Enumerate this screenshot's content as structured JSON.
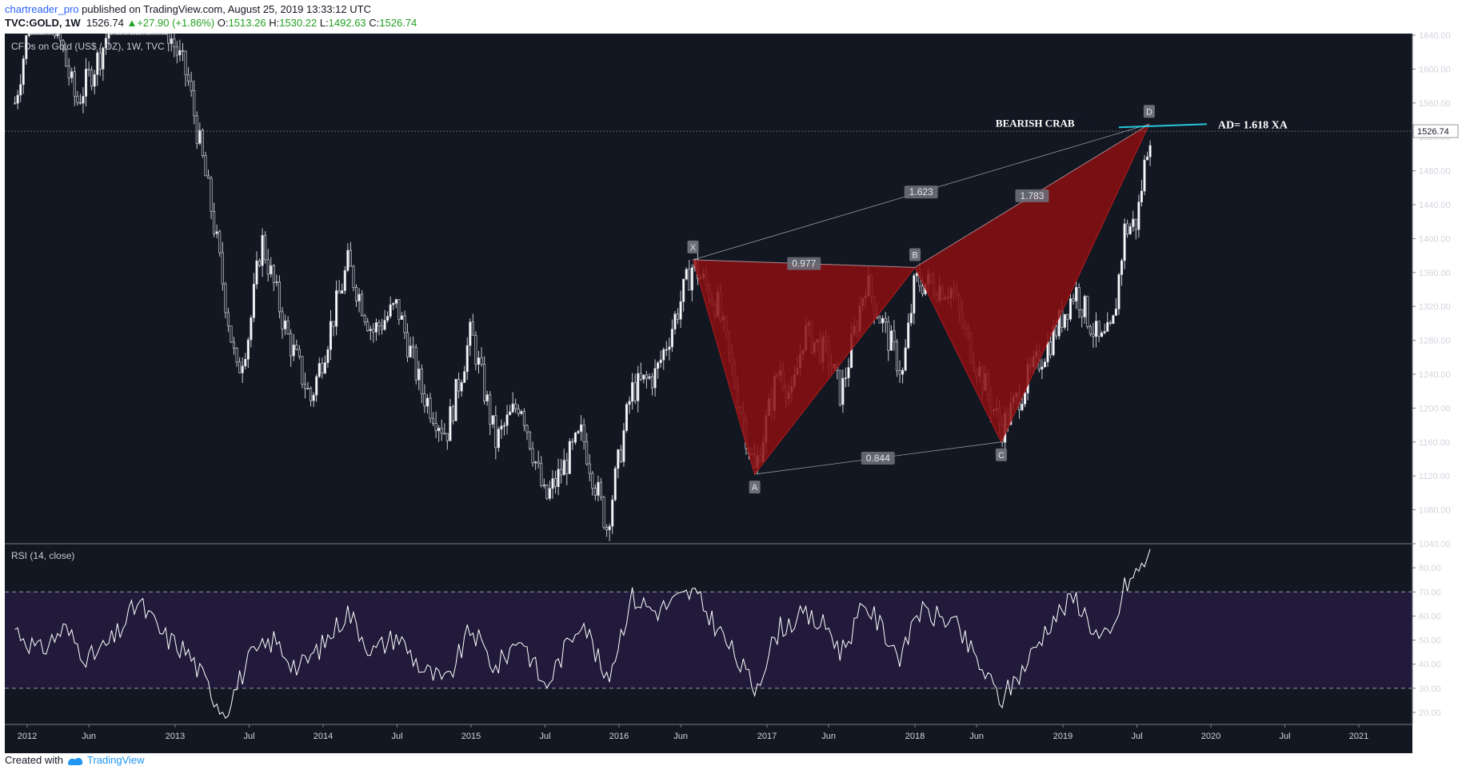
{
  "header": {
    "author": "chartreader_pro",
    "published": "published on TradingView.com, August 25, 2019 13:33:12 UTC",
    "symbol": "TVC:GOLD, 1W",
    "last": "1526.74",
    "change": "+27.90 (+1.86%)",
    "open_label": "O:",
    "open": "1513.26",
    "high_label": "H:",
    "high": "1530.22",
    "low_label": "L:",
    "low": "1492.63",
    "close_label": "C:",
    "close": "1526.74"
  },
  "pane_title": "CFDs on Gold (US$ / OZ), 1W, TVC",
  "rsi_title": "RSI (14, close)",
  "footer": {
    "created": "Created with",
    "brand": "TradingView"
  },
  "colors": {
    "background": "#131722",
    "pattern_fill": "#8b0e10",
    "rsi_band": "#211a3a",
    "target_line": "#26c6da"
  },
  "chart_data": [
    {
      "type": "candlestick",
      "title": "CFDs on Gold (US$ / OZ), 1W, TVC",
      "ylim": [
        1040,
        1640
      ],
      "y_ticks": [
        1040,
        1080,
        1120,
        1160,
        1200,
        1240,
        1280,
        1320,
        1360,
        1400,
        1440,
        1480,
        1520,
        1560,
        1600,
        1640
      ],
      "y_tick_labels": [
        "1040.00",
        "1080.00",
        "1120.00",
        "1160.00",
        "1200.00",
        "1240.00",
        "1280.00",
        "1320.00",
        "1360.00",
        "1400.00",
        "1440.00",
        "1480.00",
        "1520.00",
        "1560.00",
        "1600.00",
        "1640.00"
      ],
      "last_price_label": "1526.74",
      "x_ticks": [
        "2012-01",
        "2012-06",
        "2013-01",
        "2013-07",
        "2014-01",
        "2014-07",
        "2015-01",
        "2015-07",
        "2016-01",
        "2016-06",
        "2017-01",
        "2017-06",
        "2018-01",
        "2018-06",
        "2019-01",
        "2019-07",
        "2020-01",
        "2020-07",
        "2021-01"
      ],
      "x_tick_labels": [
        "2012",
        "Jun",
        "2013",
        "Jul",
        "2014",
        "Jul",
        "2015",
        "Jul",
        "2016",
        "Jun",
        "2017",
        "Jun",
        "2018",
        "Jun",
        "2019",
        "Jul",
        "2020",
        "Jul",
        "2021"
      ],
      "price_path": [
        [
          "2011-12",
          1560
        ],
        [
          "2012-02",
          1720
        ],
        [
          "2012-05",
          1560
        ],
        [
          "2012-07",
          1620
        ],
        [
          "2012-10",
          1760
        ],
        [
          "2012-12",
          1660
        ],
        [
          "2013-02",
          1590
        ],
        [
          "2013-04",
          1430
        ],
        [
          "2013-06",
          1240
        ],
        [
          "2013-07",
          1290
        ],
        [
          "2013-08",
          1400
        ],
        [
          "2013-10",
          1290
        ],
        [
          "2013-12",
          1210
        ],
        [
          "2014-03",
          1370
        ],
        [
          "2014-05",
          1290
        ],
        [
          "2014-07",
          1320
        ],
        [
          "2014-09",
          1220
        ],
        [
          "2014-11",
          1170
        ],
        [
          "2015-01",
          1290
        ],
        [
          "2015-03",
          1160
        ],
        [
          "2015-05",
          1210
        ],
        [
          "2015-07",
          1090
        ],
        [
          "2015-10",
          1170
        ],
        [
          "2015-12",
          1060
        ],
        [
          "2016-02",
          1220
        ],
        [
          "2016-04",
          1240
        ],
        [
          "2016-07",
          1370
        ],
        [
          "2016-09",
          1320
        ],
        [
          "2016-12",
          1125
        ],
        [
          "2017-02",
          1250
        ],
        [
          "2017-03",
          1210
        ],
        [
          "2017-04",
          1290
        ],
        [
          "2017-06",
          1260
        ],
        [
          "2017-07",
          1215
        ],
        [
          "2017-09",
          1350
        ],
        [
          "2017-12",
          1240
        ],
        [
          "2018-01",
          1350
        ],
        [
          "2018-04",
          1340
        ],
        [
          "2018-05",
          1290
        ],
        [
          "2018-08",
          1175
        ],
        [
          "2018-10",
          1230
        ],
        [
          "2018-12",
          1280
        ],
        [
          "2019-02",
          1340
        ],
        [
          "2019-04",
          1275
        ],
        [
          "2019-05",
          1290
        ],
        [
          "2019-06",
          1410
        ],
        [
          "2019-07",
          1420
        ],
        [
          "2019-08",
          1526.74
        ]
      ],
      "pattern": {
        "name": "BEARISH CRAB",
        "target_label": "AD= 1.618 XA",
        "points": [
          {
            "label": "X",
            "date": "2016-07",
            "value": 1375
          },
          {
            "label": "A",
            "date": "2016-12",
            "value": 1122
          },
          {
            "label": "B",
            "date": "2018-01",
            "value": 1366
          },
          {
            "label": "C",
            "date": "2018-08",
            "value": 1160
          },
          {
            "label": "D",
            "date": "2019-08",
            "value": 1535
          }
        ],
        "ratios": [
          {
            "label": "0.977",
            "between": "XB"
          },
          {
            "label": "1.623",
            "between": "XD"
          },
          {
            "label": "1.783",
            "between": "BD"
          },
          {
            "label": "0.844",
            "between": "AC"
          }
        ]
      }
    },
    {
      "type": "line",
      "title": "RSI (14, close)",
      "ylim": [
        15,
        90
      ],
      "y_ticks": [
        20,
        30,
        40,
        50,
        60,
        70,
        80
      ],
      "y_tick_labels": [
        "20.00",
        "30.00",
        "40.00",
        "50.00",
        "60.00",
        "70.00",
        "80.00"
      ],
      "band": [
        30,
        70
      ],
      "rsi_path": [
        [
          "2011-12",
          55
        ],
        [
          "2012-02",
          45
        ],
        [
          "2012-04",
          55
        ],
        [
          "2012-06",
          42
        ],
        [
          "2012-08",
          50
        ],
        [
          "2012-10",
          66
        ],
        [
          "2012-12",
          52
        ],
        [
          "2013-02",
          45
        ],
        [
          "2013-04",
          28
        ],
        [
          "2013-05",
          20
        ],
        [
          "2013-07",
          42
        ],
        [
          "2013-09",
          50
        ],
        [
          "2013-11",
          38
        ],
        [
          "2014-01",
          48
        ],
        [
          "2014-03",
          62
        ],
        [
          "2014-05",
          45
        ],
        [
          "2014-07",
          52
        ],
        [
          "2014-09",
          38
        ],
        [
          "2014-11",
          32
        ],
        [
          "2015-01",
          55
        ],
        [
          "2015-03",
          38
        ],
        [
          "2015-05",
          52
        ],
        [
          "2015-07",
          30
        ],
        [
          "2015-10",
          60
        ],
        [
          "2015-12",
          32
        ],
        [
          "2016-02",
          68
        ],
        [
          "2016-04",
          62
        ],
        [
          "2016-07",
          70
        ],
        [
          "2016-09",
          55
        ],
        [
          "2016-12",
          30
        ],
        [
          "2017-02",
          55
        ],
        [
          "2017-04",
          60
        ],
        [
          "2017-06",
          55
        ],
        [
          "2017-07",
          45
        ],
        [
          "2017-09",
          65
        ],
        [
          "2017-12",
          42
        ],
        [
          "2018-01",
          62
        ],
        [
          "2018-04",
          58
        ],
        [
          "2018-05",
          50
        ],
        [
          "2018-08",
          25
        ],
        [
          "2018-10",
          40
        ],
        [
          "2018-12",
          58
        ],
        [
          "2019-02",
          68
        ],
        [
          "2019-04",
          50
        ],
        [
          "2019-05",
          52
        ],
        [
          "2019-06",
          72
        ],
        [
          "2019-07",
          78
        ],
        [
          "2019-08",
          85
        ]
      ]
    }
  ]
}
